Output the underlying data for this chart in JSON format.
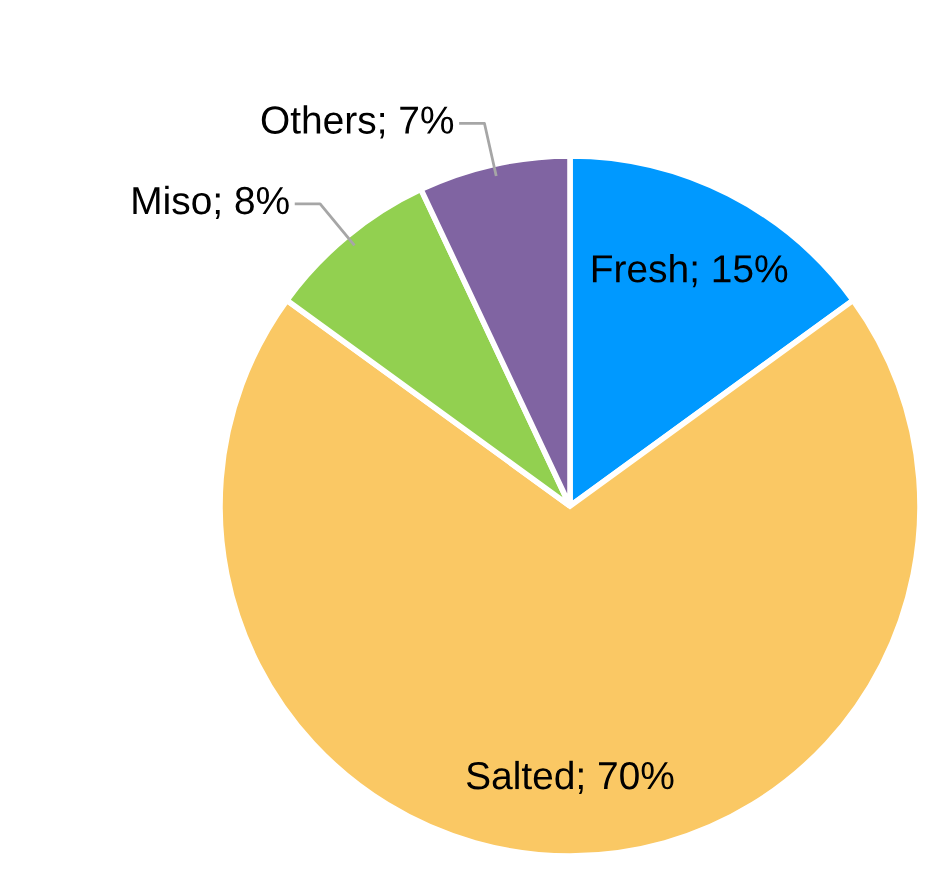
{
  "chart_data": {
    "type": "pie",
    "categories": [
      "Fresh",
      "Salted",
      "Miso",
      "Others"
    ],
    "values": [
      15,
      70,
      8,
      7
    ],
    "colors": [
      "#0099ff",
      "#fac864",
      "#92d050",
      "#8064a2"
    ],
    "value_labels": [
      "15%",
      "70%",
      "8%",
      "7%"
    ],
    "legend": false
  }
}
